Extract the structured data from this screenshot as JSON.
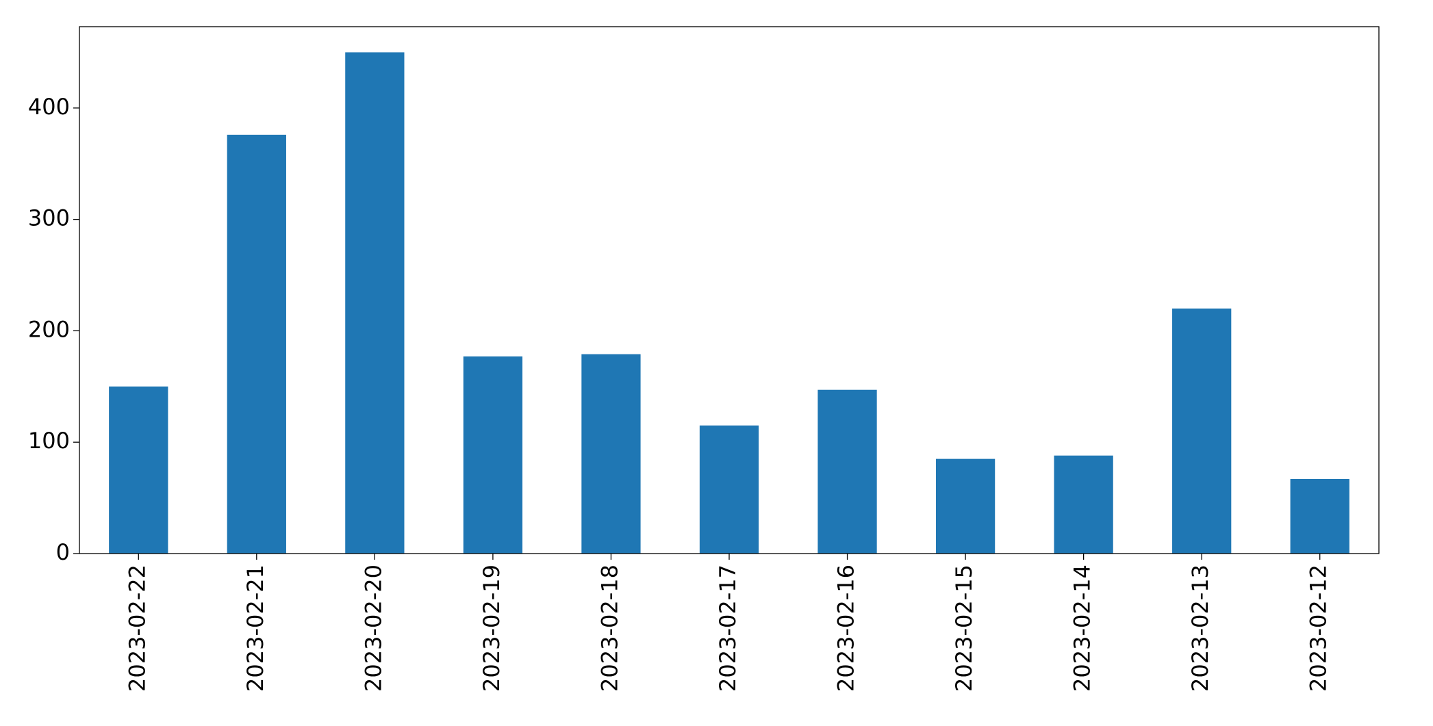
{
  "chart_data": {
    "type": "bar",
    "categories": [
      "2023-02-22",
      "2023-02-21",
      "2023-02-20",
      "2023-02-19",
      "2023-02-18",
      "2023-02-17",
      "2023-02-16",
      "2023-02-15",
      "2023-02-14",
      "2023-02-13",
      "2023-02-12"
    ],
    "values": [
      150,
      376,
      450,
      177,
      179,
      115,
      147,
      85,
      88,
      220,
      67
    ],
    "color": "#1f77b4",
    "ylim": [
      0,
      473
    ],
    "yticks": [
      0,
      100,
      200,
      300,
      400
    ],
    "grid": false
  }
}
